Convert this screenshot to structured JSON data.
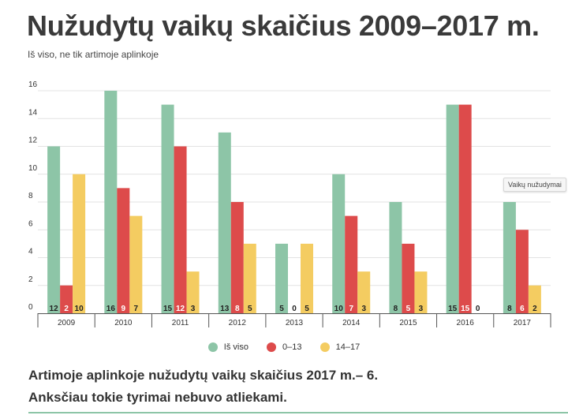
{
  "title": "Nužudytų vaikų skaičius 2009–2017 m.",
  "subtitle": "Iš viso, ne tik artimoje aplinkoje",
  "tooltip": "Vaikų nužudymai",
  "colors": {
    "total": "#8dc5a7",
    "age_0_13": "#dd4b4b",
    "age_14_17": "#f4cc61"
  },
  "chart_data": {
    "type": "bar",
    "categories": [
      "2009",
      "2010",
      "2011",
      "2012",
      "2013",
      "2014",
      "2015",
      "2016",
      "2017"
    ],
    "series": [
      {
        "name": "Iš viso",
        "color": "#8dc5a7",
        "values": [
          12,
          16,
          15,
          13,
          5,
          10,
          8,
          15,
          8
        ]
      },
      {
        "name": "0–13",
        "color": "#dd4b4b",
        "values": [
          2,
          9,
          12,
          8,
          0,
          7,
          5,
          15,
          6
        ]
      },
      {
        "name": "14–17",
        "color": "#f4cc61",
        "values": [
          10,
          7,
          3,
          5,
          5,
          3,
          3,
          0,
          2
        ]
      }
    ],
    "ylim": [
      0,
      16
    ],
    "yticks": [
      0,
      2,
      4,
      6,
      8,
      10,
      12,
      14,
      16
    ],
    "grid": true,
    "legend": "bottom-center"
  },
  "footer": {
    "line1": "Artimoje aplinkoje nužudytų vaikų skaičius 2017 m.– 6.",
    "line2": "Anksčiau tokie tyrimai nebuvo atliekami."
  }
}
